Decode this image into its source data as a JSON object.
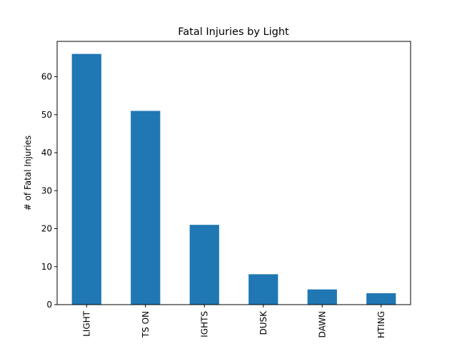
{
  "chart_data": {
    "type": "bar",
    "title": "Fatal Injuries by Light",
    "xlabel": "",
    "ylabel": "# of Fatal Injuries",
    "categories": [
      "LIGHT",
      "TS ON",
      "IGHTS",
      "DUSK",
      "DAWN",
      "HTING"
    ],
    "values": [
      66,
      51,
      21,
      8,
      4,
      3
    ],
    "ylim": [
      0,
      69.3
    ],
    "yticks": [
      0,
      10,
      20,
      30,
      40,
      50,
      60
    ],
    "grid": false,
    "bar_color": "#1f77b4"
  }
}
